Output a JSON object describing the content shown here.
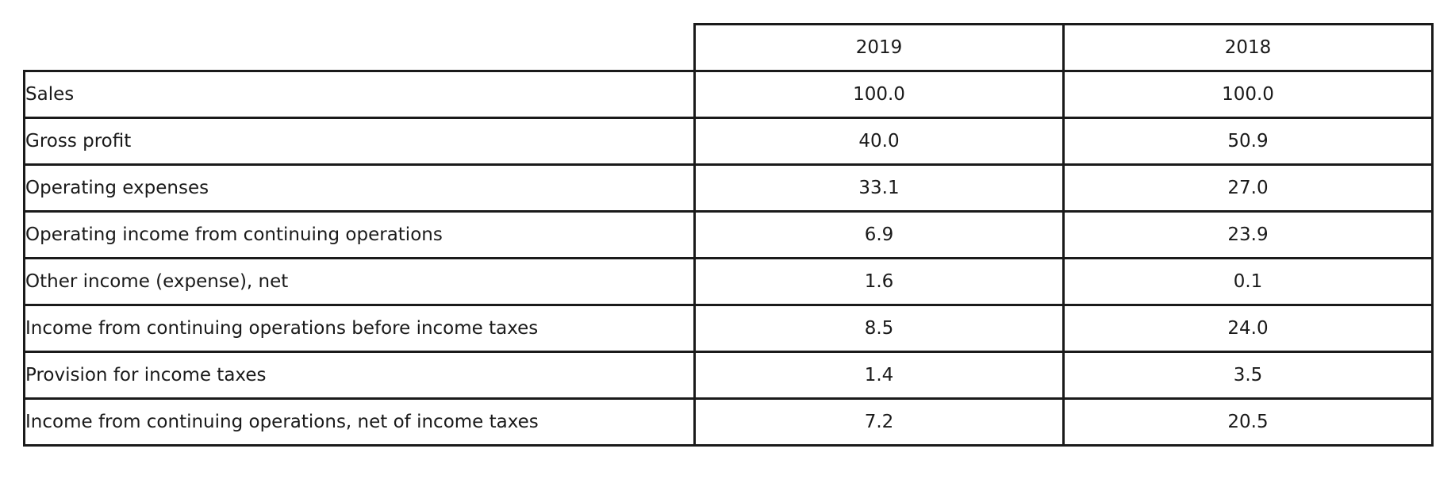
{
  "table": {
    "columns": [
      "2019",
      "2018"
    ],
    "rows": [
      {
        "label": "Sales",
        "values": [
          "100.0",
          "100.0"
        ]
      },
      {
        "label": "Gross profit",
        "values": [
          "40.0",
          "50.9"
        ]
      },
      {
        "label": "Operating expenses",
        "values": [
          "33.1",
          "27.0"
        ]
      },
      {
        "label": "Operating income from continuing operations",
        "values": [
          "6.9",
          "23.9"
        ]
      },
      {
        "label": "Other income (expense), net",
        "values": [
          "1.6",
          "0.1"
        ]
      },
      {
        "label": "Income from continuing operations before income taxes",
        "values": [
          "8.5",
          "24.0"
        ]
      },
      {
        "label": "Provision for income taxes",
        "values": [
          "1.4",
          "3.5"
        ]
      },
      {
        "label": "Income from continuing operations, net of income taxes",
        "values": [
          "7.2",
          "20.5"
        ]
      }
    ]
  }
}
